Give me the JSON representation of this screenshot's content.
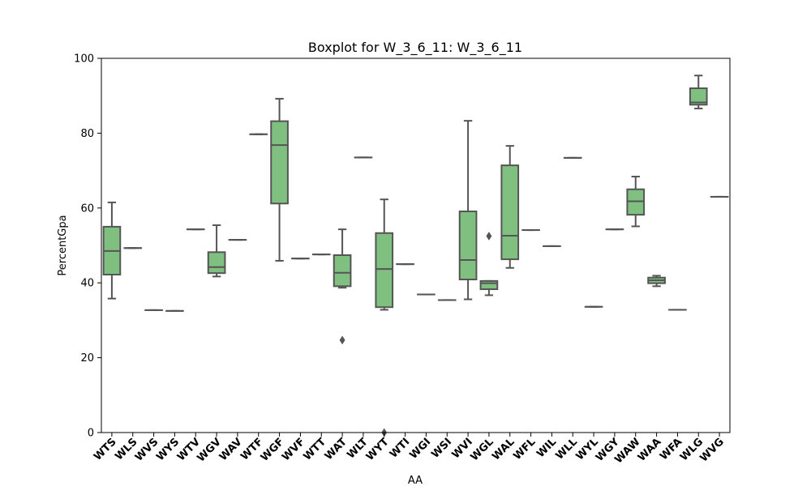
{
  "chart_data": {
    "type": "boxplot",
    "title": "Boxplot for W_3_6_11: W_3_6_11",
    "xlabel": "AA",
    "ylabel": "PercentGpa",
    "ylim": [
      0,
      100
    ],
    "yticks": [
      0,
      20,
      40,
      60,
      80,
      100
    ],
    "grid": false,
    "colors": {
      "box_fill": "#7fbf7f",
      "line": "#555555",
      "axis": "#000000"
    },
    "categories": [
      "WTS",
      "WLS",
      "WVS",
      "WYS",
      "WTV",
      "WGV",
      "WAV",
      "WTF",
      "WGF",
      "WVF",
      "WTT",
      "WAT",
      "WLT",
      "WYT",
      "WTI",
      "WGI",
      "WSI",
      "WVI",
      "WGL",
      "WAL",
      "WFL",
      "WIL",
      "WLL",
      "WYL",
      "WGY",
      "WAW",
      "WAA",
      "WFA",
      "WLG",
      "WVG"
    ],
    "boxes": [
      {
        "whislo": 35.8,
        "q1": 42.2,
        "med": 48.5,
        "q3": 55.0,
        "whishi": 61.5,
        "fliers": []
      },
      {
        "whislo": 49.3,
        "q1": 49.3,
        "med": 49.3,
        "q3": 49.3,
        "whishi": 49.3,
        "fliers": []
      },
      {
        "whislo": 32.7,
        "q1": 32.7,
        "med": 32.7,
        "q3": 32.7,
        "whishi": 32.7,
        "fliers": []
      },
      {
        "whislo": 32.5,
        "q1": 32.5,
        "med": 32.5,
        "q3": 32.5,
        "whishi": 32.5,
        "fliers": []
      },
      {
        "whislo": 54.3,
        "q1": 54.3,
        "med": 54.3,
        "q3": 54.3,
        "whishi": 54.3,
        "fliers": []
      },
      {
        "whislo": 41.7,
        "q1": 42.6,
        "med": 44.2,
        "q3": 48.2,
        "whishi": 55.4,
        "fliers": []
      },
      {
        "whislo": 51.5,
        "q1": 51.5,
        "med": 51.5,
        "q3": 51.5,
        "whishi": 51.5,
        "fliers": []
      },
      {
        "whislo": 79.7,
        "q1": 79.7,
        "med": 79.7,
        "q3": 79.7,
        "whishi": 79.7,
        "fliers": []
      },
      {
        "whislo": 45.9,
        "q1": 61.2,
        "med": 76.8,
        "q3": 83.2,
        "whishi": 89.2,
        "fliers": []
      },
      {
        "whislo": 46.5,
        "q1": 46.5,
        "med": 46.5,
        "q3": 46.5,
        "whishi": 46.5,
        "fliers": []
      },
      {
        "whislo": 47.6,
        "q1": 47.6,
        "med": 47.6,
        "q3": 47.6,
        "whishi": 47.6,
        "fliers": []
      },
      {
        "whislo": 38.7,
        "q1": 39.1,
        "med": 42.7,
        "q3": 47.4,
        "whishi": 54.3,
        "fliers": [
          24.7
        ]
      },
      {
        "whislo": 73.5,
        "q1": 73.5,
        "med": 73.5,
        "q3": 73.5,
        "whishi": 73.5,
        "fliers": []
      },
      {
        "whislo": 32.8,
        "q1": 33.5,
        "med": 43.7,
        "q3": 53.3,
        "whishi": 62.3,
        "fliers": [
          0
        ]
      },
      {
        "whislo": 45.0,
        "q1": 45.0,
        "med": 45.0,
        "q3": 45.0,
        "whishi": 45.0,
        "fliers": []
      },
      {
        "whislo": 36.9,
        "q1": 36.9,
        "med": 36.9,
        "q3": 36.9,
        "whishi": 36.9,
        "fliers": []
      },
      {
        "whislo": 35.4,
        "q1": 35.4,
        "med": 35.4,
        "q3": 35.4,
        "whishi": 35.4,
        "fliers": []
      },
      {
        "whislo": 35.6,
        "q1": 40.9,
        "med": 46.1,
        "q3": 59.1,
        "whishi": 83.3,
        "fliers": []
      },
      {
        "whislo": 36.7,
        "q1": 38.3,
        "med": 39.9,
        "q3": 40.5,
        "whishi": 40.5,
        "fliers": [
          52.5
        ]
      },
      {
        "whislo": 44.0,
        "q1": 46.3,
        "med": 52.6,
        "q3": 71.4,
        "whishi": 76.6,
        "fliers": []
      },
      {
        "whislo": 54.1,
        "q1": 54.1,
        "med": 54.1,
        "q3": 54.1,
        "whishi": 54.1,
        "fliers": []
      },
      {
        "whislo": 49.8,
        "q1": 49.8,
        "med": 49.8,
        "q3": 49.8,
        "whishi": 49.8,
        "fliers": []
      },
      {
        "whislo": 73.4,
        "q1": 73.4,
        "med": 73.4,
        "q3": 73.4,
        "whishi": 73.4,
        "fliers": []
      },
      {
        "whislo": 33.6,
        "q1": 33.6,
        "med": 33.6,
        "q3": 33.6,
        "whishi": 33.6,
        "fliers": []
      },
      {
        "whislo": 54.3,
        "q1": 54.3,
        "med": 54.3,
        "q3": 54.3,
        "whishi": 54.3,
        "fliers": []
      },
      {
        "whislo": 55.1,
        "q1": 58.2,
        "med": 61.8,
        "q3": 65.0,
        "whishi": 68.4,
        "fliers": []
      },
      {
        "whislo": 39.1,
        "q1": 39.9,
        "med": 40.7,
        "q3": 41.4,
        "whishi": 41.9,
        "fliers": []
      },
      {
        "whislo": 32.8,
        "q1": 32.8,
        "med": 32.8,
        "q3": 32.8,
        "whishi": 32.8,
        "fliers": []
      },
      {
        "whislo": 86.6,
        "q1": 87.6,
        "med": 88.2,
        "q3": 92.0,
        "whishi": 95.4,
        "fliers": []
      },
      {
        "whislo": 63.0,
        "q1": 63.0,
        "med": 63.0,
        "q3": 63.0,
        "whishi": 63.0,
        "fliers": []
      }
    ]
  }
}
